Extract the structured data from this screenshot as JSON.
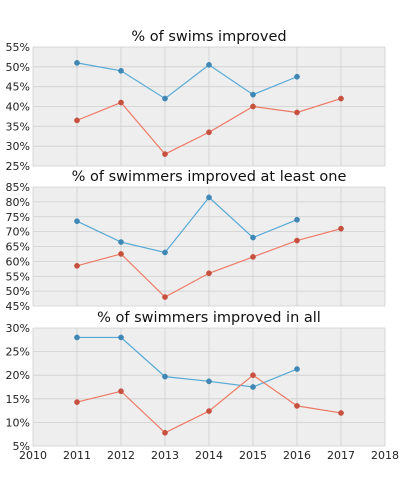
{
  "chart_data": {
    "type": "line",
    "colors": {
      "blue": "#56a9d6",
      "blue_marker": "#3f87b4",
      "red": "#ee7a66",
      "red_marker": "#c7513f",
      "panel_bg": "#eeeeee",
      "grid": "#cfcfcf"
    },
    "x_ticks": [
      2010,
      2011,
      2012,
      2013,
      2014,
      2015,
      2016,
      2017,
      2018
    ],
    "x_range": [
      2010,
      2018
    ],
    "grid": true,
    "panels": [
      {
        "title": "% of swims improved",
        "ylim": [
          25,
          55
        ],
        "y_ticks": [
          25,
          30,
          35,
          40,
          45,
          50,
          55
        ],
        "y_tick_labels": [
          "25%",
          "30%",
          "35%",
          "40%",
          "45%",
          "50%",
          "55%"
        ],
        "series": [
          {
            "color_key": "blue",
            "x": [
              2011,
              2012,
              2013,
              2014,
              2015,
              2016
            ],
            "values": [
              51.0,
              49.0,
              42.0,
              50.5,
              43.0,
              47.5
            ]
          },
          {
            "color_key": "red",
            "x": [
              2011,
              2012,
              2013,
              2014,
              2015,
              2016,
              2017
            ],
            "values": [
              36.5,
              41.0,
              28.0,
              33.5,
              40.0,
              38.5,
              42.0
            ]
          }
        ]
      },
      {
        "title": "% of swimmers improved at least one",
        "ylim": [
          45,
          85
        ],
        "y_ticks": [
          45,
          50,
          55,
          60,
          65,
          70,
          75,
          80,
          85
        ],
        "y_tick_labels": [
          "45%",
          "50%",
          "55%",
          "60%",
          "65%",
          "70%",
          "75%",
          "80%",
          "85%"
        ],
        "series": [
          {
            "color_key": "blue",
            "x": [
              2011,
              2012,
              2013,
              2014,
              2015,
              2016
            ],
            "values": [
              73.5,
              66.5,
              63.0,
              81.5,
              68.0,
              74.0
            ]
          },
          {
            "color_key": "red",
            "x": [
              2011,
              2012,
              2013,
              2014,
              2015,
              2016,
              2017
            ],
            "values": [
              58.5,
              62.5,
              48.0,
              56.0,
              61.5,
              67.0,
              71.0
            ]
          }
        ]
      },
      {
        "title": "% of swimmers improved in all",
        "ylim": [
          5,
          30
        ],
        "y_ticks": [
          5,
          10,
          15,
          20,
          25,
          30
        ],
        "y_tick_labels": [
          "5%",
          "10%",
          "15%",
          "20%",
          "25%",
          "30%"
        ],
        "series": [
          {
            "color_key": "blue",
            "x": [
              2011,
              2012,
              2013,
              2014,
              2015,
              2016
            ],
            "values": [
              28.0,
              28.0,
              19.7,
              18.7,
              17.5,
              21.3
            ]
          },
          {
            "color_key": "red",
            "x": [
              2011,
              2012,
              2013,
              2014,
              2015,
              2016,
              2017
            ],
            "values": [
              14.3,
              16.6,
              7.8,
              12.4,
              20.0,
              13.5,
              12.0
            ]
          }
        ]
      }
    ]
  }
}
